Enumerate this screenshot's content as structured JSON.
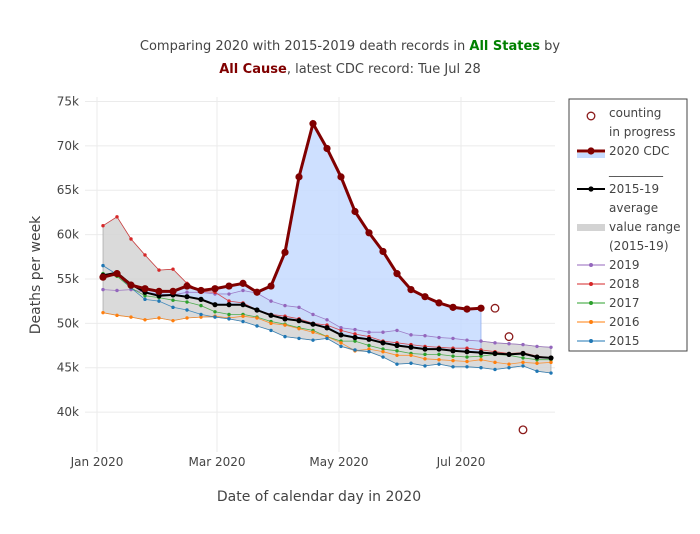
{
  "title": {
    "line1_prefix": "Comparing 2020 with 2015-2019 death records in ",
    "line1_region": "All States",
    "line1_suffix": " by",
    "line2_cause": "All Cause",
    "line2_suffix": ", latest CDC record: Tue Jul 28"
  },
  "colors": {
    "region": "#008000",
    "cause": "#800000",
    "cdc2020": "#800000",
    "average": "#000000",
    "range_fill": "#d3d3d3",
    "excess_fill": "#c6dbff",
    "y2019": "#9467bd",
    "y2018": "#d62728",
    "y2017": "#2ca02c",
    "y2016": "#ff7f0e",
    "y2015": "#1f77b4",
    "counting": "#8b1a1a"
  },
  "chart_data": {
    "type": "line",
    "xlabel": "Date of calendar day in 2020",
    "ylabel": "Deaths per week",
    "x_ticks": [
      {
        "date": "2020-01-01",
        "label": "Jan 2020"
      },
      {
        "date": "2020-03-01",
        "label": "Mar 2020"
      },
      {
        "date": "2020-05-01",
        "label": "May 2020"
      },
      {
        "date": "2020-07-01",
        "label": "Jul 2020"
      }
    ],
    "xlim": [
      "2019-12-26",
      "2020-08-17"
    ],
    "ylim": [
      35500,
      75500
    ],
    "y_ticks": [
      {
        "value": 40000,
        "label": "40k"
      },
      {
        "value": 45000,
        "label": "45k"
      },
      {
        "value": 50000,
        "label": "50k"
      },
      {
        "value": 55000,
        "label": "55k"
      },
      {
        "value": 60000,
        "label": "60k"
      },
      {
        "value": 65000,
        "label": "65k"
      },
      {
        "value": 70000,
        "label": "70k"
      },
      {
        "value": 75000,
        "label": "75k"
      }
    ],
    "grid": true,
    "legend_position": "right",
    "weeks": [
      "2020-01-04",
      "2020-01-11",
      "2020-01-18",
      "2020-01-25",
      "2020-02-01",
      "2020-02-08",
      "2020-02-15",
      "2020-02-22",
      "2020-02-29",
      "2020-03-07",
      "2020-03-14",
      "2020-03-21",
      "2020-03-28",
      "2020-04-04",
      "2020-04-11",
      "2020-04-18",
      "2020-04-25",
      "2020-05-02",
      "2020-05-09",
      "2020-05-16",
      "2020-05-23",
      "2020-05-30",
      "2020-06-06",
      "2020-06-13",
      "2020-06-20",
      "2020-06-27",
      "2020-07-04",
      "2020-07-11",
      "2020-07-18",
      "2020-07-25",
      "2020-08-01",
      "2020-08-08",
      "2020-08-15"
    ],
    "series_2015_2019": [
      {
        "year": "2019",
        "values": [
          53800,
          53700,
          53800,
          53500,
          53300,
          53200,
          53500,
          53500,
          53300,
          53300,
          53700,
          53400,
          52500,
          52000,
          51800,
          51000,
          50400,
          49500,
          49300,
          49000,
          49000,
          49200,
          48700,
          48600,
          48400,
          48300,
          48100,
          48000,
          47800,
          47700,
          47600,
          47400,
          47300
        ]
      },
      {
        "year": "2018",
        "values": [
          61000,
          62000,
          59500,
          57700,
          56000,
          56100,
          54500,
          53600,
          53500,
          52500,
          52300,
          51500,
          51000,
          50800,
          50500,
          50000,
          49800,
          49200,
          48800,
          48500,
          48000,
          47800,
          47600,
          47400,
          47300,
          47200,
          47200,
          47000,
          46800,
          46600,
          46700,
          46300,
          46100
        ]
      },
      {
        "year": "2017",
        "values": [
          55600,
          55300,
          54000,
          53100,
          52900,
          52600,
          52400,
          52000,
          51300,
          51000,
          51000,
          50700,
          50200,
          49900,
          49500,
          49200,
          48500,
          48000,
          48000,
          47500,
          47100,
          46900,
          46600,
          46500,
          46500,
          46300,
          46200,
          46300,
          46500,
          46400,
          46100,
          45900,
          45900
        ]
      },
      {
        "year": "2016",
        "values": [
          51200,
          50900,
          50700,
          50400,
          50600,
          50300,
          50600,
          50700,
          50800,
          50600,
          50800,
          50600,
          50000,
          49800,
          49400,
          49000,
          48500,
          47800,
          46900,
          47100,
          46800,
          46400,
          46400,
          46000,
          45900,
          45800,
          45700,
          45900,
          45600,
          45400,
          45600,
          45500,
          45600
        ]
      },
      {
        "year": "2015",
        "values": [
          56500,
          55500,
          54000,
          52700,
          52500,
          51800,
          51500,
          51000,
          50700,
          50500,
          50200,
          49700,
          49200,
          48500,
          48300,
          48100,
          48300,
          47400,
          47000,
          46800,
          46200,
          45400,
          45500,
          45200,
          45400,
          45100,
          45100,
          45000,
          44800,
          45000,
          45200,
          44600,
          44400
        ]
      }
    ],
    "average_2015_19": [
      55400,
      55700,
      54400,
      53500,
      53100,
      53200,
      53000,
      52700,
      52100,
      52100,
      52100,
      51500,
      50900,
      50500,
      50300,
      49900,
      49500,
      48700,
      48400,
      48200,
      47800,
      47500,
      47300,
      47100,
      47100,
      46900,
      46800,
      46700,
      46600,
      46500,
      46600,
      46200,
      46100
    ],
    "cdc_2020": [
      {
        "date": "2020-01-04",
        "value": 55200
      },
      {
        "date": "2020-01-11",
        "value": 55600
      },
      {
        "date": "2020-01-18",
        "value": 54300
      },
      {
        "date": "2020-01-25",
        "value": 53900
      },
      {
        "date": "2020-02-01",
        "value": 53600
      },
      {
        "date": "2020-02-08",
        "value": 53600
      },
      {
        "date": "2020-02-15",
        "value": 54200
      },
      {
        "date": "2020-02-22",
        "value": 53700
      },
      {
        "date": "2020-02-29",
        "value": 53900
      },
      {
        "date": "2020-03-07",
        "value": 54200
      },
      {
        "date": "2020-03-14",
        "value": 54500
      },
      {
        "date": "2020-03-21",
        "value": 53500
      },
      {
        "date": "2020-03-28",
        "value": 54200
      },
      {
        "date": "2020-04-04",
        "value": 58000
      },
      {
        "date": "2020-04-11",
        "value": 66500
      },
      {
        "date": "2020-04-18",
        "value": 72500
      },
      {
        "date": "2020-04-25",
        "value": 69700
      },
      {
        "date": "2020-05-02",
        "value": 66500
      },
      {
        "date": "2020-05-09",
        "value": 62600
      },
      {
        "date": "2020-05-16",
        "value": 60200
      },
      {
        "date": "2020-05-23",
        "value": 58100
      },
      {
        "date": "2020-05-30",
        "value": 55600
      },
      {
        "date": "2020-06-06",
        "value": 53800
      },
      {
        "date": "2020-06-13",
        "value": 53000
      },
      {
        "date": "2020-06-20",
        "value": 52300
      },
      {
        "date": "2020-06-27",
        "value": 51800
      },
      {
        "date": "2020-07-04",
        "value": 51600
      },
      {
        "date": "2020-07-11",
        "value": 51700
      }
    ],
    "counting_in_progress": [
      {
        "date": "2020-07-18",
        "value": 51700
      },
      {
        "date": "2020-07-25",
        "value": 48500
      },
      {
        "date": "2020-08-01",
        "value": 38000
      }
    ]
  },
  "legend": {
    "items": [
      {
        "key": "counting",
        "label_lines": [
          "counting",
          "in progress"
        ]
      },
      {
        "key": "cdc2020",
        "label_lines": [
          "2020 CDC"
        ]
      },
      {
        "key": "separator",
        "label_lines": [
          "_________"
        ]
      },
      {
        "key": "average",
        "label_lines": [
          "2015-19",
          "average"
        ]
      },
      {
        "key": "range",
        "label_lines": [
          "value range",
          "(2015-19)"
        ]
      },
      {
        "key": "y2019",
        "label_lines": [
          "2019"
        ]
      },
      {
        "key": "y2018",
        "label_lines": [
          "2018"
        ]
      },
      {
        "key": "y2017",
        "label_lines": [
          "2017"
        ]
      },
      {
        "key": "y2016",
        "label_lines": [
          "2016"
        ]
      },
      {
        "key": "y2015",
        "label_lines": [
          "2015"
        ]
      }
    ]
  }
}
